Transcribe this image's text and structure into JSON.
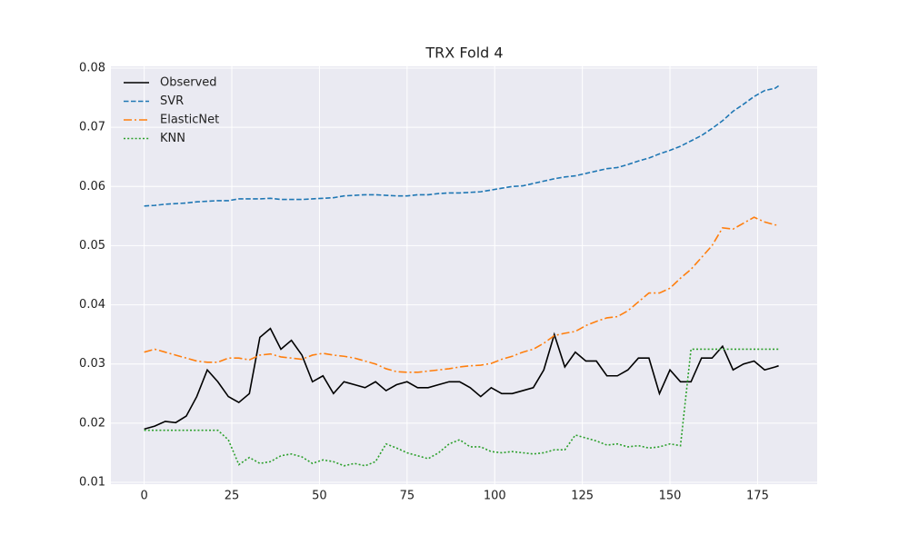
{
  "chart_data": {
    "type": "line",
    "title": "TRX Fold 4",
    "x": [
      0,
      3,
      6,
      9,
      12,
      15,
      18,
      21,
      24,
      27,
      30,
      33,
      36,
      39,
      42,
      45,
      48,
      51,
      54,
      57,
      60,
      63,
      66,
      69,
      72,
      75,
      78,
      81,
      84,
      87,
      90,
      93,
      96,
      99,
      102,
      105,
      108,
      111,
      114,
      117,
      120,
      123,
      126,
      129,
      132,
      135,
      138,
      141,
      144,
      147,
      150,
      153,
      156,
      159,
      162,
      165,
      168,
      171,
      174,
      177,
      180,
      181
    ],
    "xlim": [
      -9.5,
      192
    ],
    "xticks": [
      0,
      25,
      50,
      75,
      100,
      125,
      150,
      175
    ],
    "ylim": [
      0.0097,
      0.0803
    ],
    "yticks": [
      0.01,
      0.02,
      0.03,
      0.04,
      0.05,
      0.06,
      0.07,
      0.08
    ],
    "grid": true,
    "legend": "upper left",
    "series": [
      {
        "name": "Observed",
        "color": "#000000",
        "dash": "solid",
        "values": [
          0.019,
          0.0195,
          0.0203,
          0.0201,
          0.0212,
          0.0245,
          0.029,
          0.027,
          0.0245,
          0.0235,
          0.025,
          0.0345,
          0.036,
          0.0325,
          0.034,
          0.0315,
          0.027,
          0.028,
          0.025,
          0.027,
          0.0265,
          0.026,
          0.027,
          0.0255,
          0.0265,
          0.027,
          0.026,
          0.026,
          0.0265,
          0.027,
          0.027,
          0.026,
          0.0245,
          0.026,
          0.025,
          0.025,
          0.0255,
          0.026,
          0.029,
          0.035,
          0.0295,
          0.032,
          0.0305,
          0.0305,
          0.028,
          0.028,
          0.029,
          0.031,
          0.031,
          0.025,
          0.029,
          0.027,
          0.027,
          0.031,
          0.031,
          0.033,
          0.029,
          0.03,
          0.0305,
          0.029,
          0.0295,
          0.0297
        ]
      },
      {
        "name": "SVR",
        "color": "#1f77b4",
        "dash": "dashed",
        "values": [
          0.0567,
          0.0568,
          0.057,
          0.0571,
          0.0572,
          0.0574,
          0.0575,
          0.0576,
          0.0576,
          0.0579,
          0.0579,
          0.0579,
          0.058,
          0.0578,
          0.0578,
          0.0578,
          0.0579,
          0.058,
          0.0581,
          0.0584,
          0.0585,
          0.0586,
          0.0586,
          0.0585,
          0.0584,
          0.0584,
          0.0586,
          0.0586,
          0.0588,
          0.0589,
          0.0589,
          0.059,
          0.0591,
          0.0594,
          0.0597,
          0.06,
          0.0601,
          0.0605,
          0.0609,
          0.0613,
          0.0616,
          0.0618,
          0.0622,
          0.0626,
          0.063,
          0.0632,
          0.0637,
          0.0643,
          0.0648,
          0.0655,
          0.0661,
          0.0668,
          0.0677,
          0.0686,
          0.0698,
          0.0711,
          0.0727,
          0.0739,
          0.0752,
          0.0762,
          0.0766,
          0.077
        ]
      },
      {
        "name": "ElasticNet",
        "color": "#ff7f0e",
        "dash": "dashdot",
        "values": [
          0.032,
          0.0325,
          0.032,
          0.0315,
          0.031,
          0.0305,
          0.0303,
          0.0303,
          0.031,
          0.031,
          0.0307,
          0.0315,
          0.0317,
          0.0312,
          0.031,
          0.0308,
          0.0315,
          0.0318,
          0.0315,
          0.0313,
          0.031,
          0.0305,
          0.03,
          0.0292,
          0.0287,
          0.0286,
          0.0286,
          0.0288,
          0.029,
          0.0292,
          0.0295,
          0.0297,
          0.0298,
          0.0301,
          0.0308,
          0.0313,
          0.032,
          0.0325,
          0.0335,
          0.0348,
          0.0352,
          0.0355,
          0.0365,
          0.0372,
          0.0378,
          0.038,
          0.039,
          0.0405,
          0.042,
          0.042,
          0.0428,
          0.0445,
          0.046,
          0.048,
          0.05,
          0.053,
          0.0528,
          0.0538,
          0.0548,
          0.054,
          0.0535,
          0.0535
        ]
      },
      {
        "name": "KNN",
        "color": "#2ca02c",
        "dash": "dotted",
        "values": [
          0.0188,
          0.0188,
          0.0188,
          0.0188,
          0.0188,
          0.0188,
          0.0188,
          0.0188,
          0.0172,
          0.013,
          0.0142,
          0.0132,
          0.0135,
          0.0145,
          0.0148,
          0.0143,
          0.0132,
          0.0138,
          0.0135,
          0.0128,
          0.0132,
          0.0128,
          0.0135,
          0.0165,
          0.0158,
          0.015,
          0.0145,
          0.014,
          0.015,
          0.0165,
          0.0172,
          0.016,
          0.016,
          0.0152,
          0.015,
          0.0152,
          0.015,
          0.0148,
          0.015,
          0.0155,
          0.0155,
          0.018,
          0.0175,
          0.017,
          0.0163,
          0.0165,
          0.016,
          0.0162,
          0.0158,
          0.016,
          0.0165,
          0.0162,
          0.0325,
          0.0325,
          0.0325,
          0.0325,
          0.0325,
          0.0325,
          0.0325,
          0.0325,
          0.0325,
          0.0325
        ]
      }
    ]
  }
}
